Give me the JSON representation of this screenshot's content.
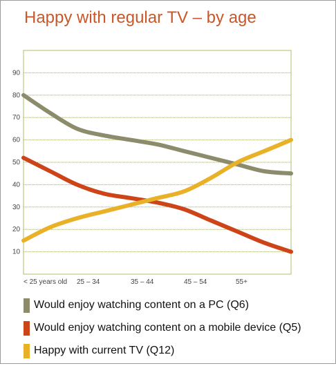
{
  "title": "Happy with regular TV – by age",
  "chart_data": {
    "type": "line",
    "title": "Happy with regular TV – by age",
    "xlabel": "",
    "ylabel": "",
    "categories": [
      "< 25 years old",
      "25 – 34",
      "35 – 44",
      "45 – 54",
      "55+"
    ],
    "ylim": [
      0,
      100
    ],
    "yticks": [
      10,
      20,
      30,
      40,
      50,
      60,
      70,
      80,
      90
    ],
    "grid": true,
    "legend_position": "bottom",
    "series": [
      {
        "name": "Would enjoy watching content on a PC (Q6)",
        "color": "#8c8c6c",
        "x": [
          0,
          0.5,
          1,
          1.5,
          2,
          2.5,
          3,
          3.5,
          4,
          4.5,
          5
        ],
        "values": [
          80,
          72,
          65,
          62,
          60,
          58,
          55,
          52,
          49,
          46,
          45
        ]
      },
      {
        "name": "Would enjoy watching content on a mobile device (Q5)",
        "color": "#cc4418",
        "x": [
          0,
          0.5,
          1,
          1.5,
          2,
          2.5,
          3,
          3.5,
          4,
          4.5,
          5
        ],
        "values": [
          52,
          46,
          40,
          36,
          34,
          32,
          29,
          24,
          19,
          14,
          10
        ]
      },
      {
        "name": "Happy with current TV (Q12)",
        "color": "#e8b128",
        "x": [
          0,
          0.5,
          1,
          1.5,
          2,
          2.5,
          3,
          3.5,
          4,
          4.5,
          5
        ],
        "values": [
          15,
          21,
          25,
          28,
          31,
          34,
          37,
          43,
          50,
          55,
          60
        ]
      }
    ]
  }
}
